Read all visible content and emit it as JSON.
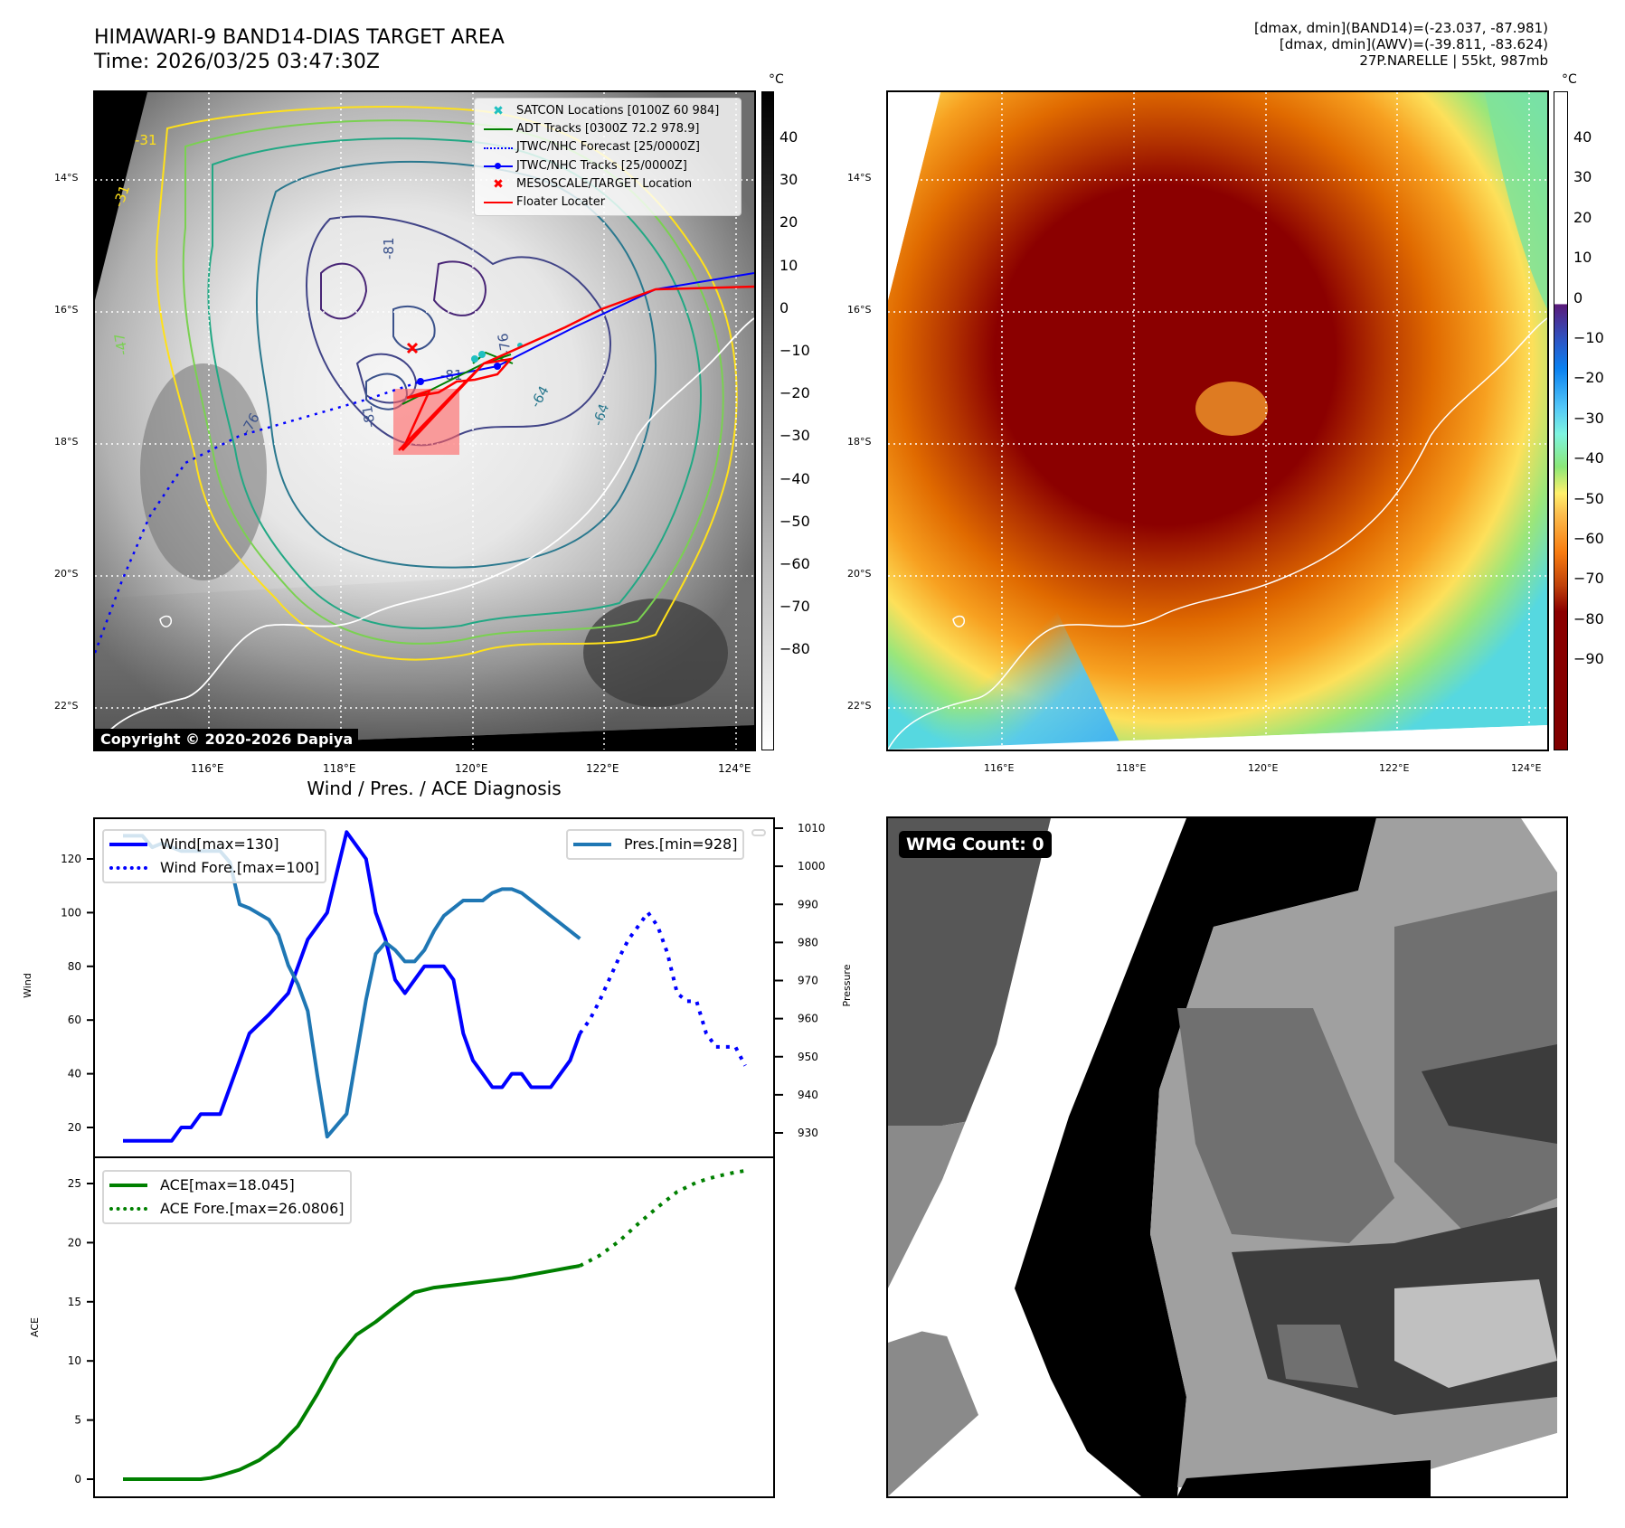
{
  "header": {
    "title_line1": "HIMAWARI-9 BAND14-DIAS TARGET AREA",
    "title_line2": "Time: 2026/03/25 03:47:30Z",
    "stats_line1": "[dmax, dmin](BAND14)=(-23.037, -87.981)",
    "stats_line2": "[dmax, dmin](AWV)=(-39.811, -83.624)",
    "stats_line3": "27P.NARELLE | 55kt, 987mb"
  },
  "left_map": {
    "lat_ticks": [
      "14°S",
      "16°S",
      "18°S",
      "20°S",
      "22°S"
    ],
    "lon_ticks": [
      "116°E",
      "118°E",
      "120°E",
      "122°E",
      "124°E"
    ],
    "copyright": "Copyright © 2020-2026 Dapiya",
    "contour_labels": [
      "-31",
      "-31",
      "-47",
      "-76",
      "-81",
      "-81",
      "-81",
      "-76",
      "-64",
      "-64"
    ],
    "legend": [
      {
        "label": "SATCON Locations [0100Z 60 984]",
        "icon": "x-marker-icon",
        "color": "#1fc0c0"
      },
      {
        "label": "ADT Tracks [0300Z 72.2 978.9]",
        "icon": "line-icon",
        "color": "#008000"
      },
      {
        "label": "JTWC/NHC Forecast [25/0000Z]",
        "icon": "dotted-line-icon",
        "color": "#0000ff"
      },
      {
        "label": "JTWC/NHC Tracks [25/0000Z]",
        "icon": "line-dot-icon",
        "color": "#0000ff"
      },
      {
        "label": "MESOSCALE/TARGET Location",
        "icon": "x-marker-icon",
        "color": "#ff0000"
      },
      {
        "label": "Floater Locater",
        "icon": "line-icon",
        "color": "#ff0000"
      }
    ],
    "colorbar": {
      "unit": "°C",
      "ticks": [
        "40",
        "30",
        "20",
        "10",
        "0",
        "−10",
        "−20",
        "−30",
        "−40",
        "−50",
        "−60",
        "−70",
        "−80"
      ]
    }
  },
  "right_map": {
    "lat_ticks": [
      "14°S",
      "16°S",
      "18°S",
      "20°S",
      "22°S"
    ],
    "lon_ticks": [
      "116°E",
      "118°E",
      "120°E",
      "122°E",
      "124°E"
    ],
    "colorbar": {
      "unit": "°C",
      "ticks": [
        "40",
        "30",
        "20",
        "10",
        "0",
        "−10",
        "−20",
        "−30",
        "−40",
        "−50",
        "−60",
        "−70",
        "−80",
        "−90"
      ]
    }
  },
  "wmg": {
    "badge": "WMG Count: 0"
  },
  "chart_data": [
    {
      "type": "line",
      "title": "Wind / Pres. / ACE Diagnosis",
      "ylabel": "Wind",
      "ylabel_right": "Pressure",
      "ylim": [
        11,
        136
      ],
      "ylim_right": [
        923,
        1012
      ],
      "yticks": [
        20,
        40,
        60,
        80,
        100,
        120
      ],
      "yticks_right": [
        930,
        940,
        950,
        960,
        970,
        980,
        990,
        1000,
        1010
      ],
      "x": [
        0,
        1,
        2,
        3,
        4,
        5,
        6,
        7,
        8,
        9,
        10,
        11,
        12,
        13,
        14,
        15,
        16,
        17,
        18,
        19,
        20,
        21,
        22,
        23,
        24,
        25,
        26,
        27,
        28,
        29,
        30,
        31,
        32,
        33,
        34,
        35,
        36,
        37,
        38,
        39,
        40,
        41,
        42,
        43,
        44,
        45,
        46,
        47,
        48,
        49,
        50,
        51,
        52,
        53,
        54,
        55,
        56,
        57,
        58,
        59,
        60,
        61,
        62,
        63,
        64
      ],
      "series": [
        {
          "name": "Wind[max=130]",
          "color": "#0000ff",
          "style": "solid",
          "x": [
            0,
            2,
            4,
            5,
            6,
            7,
            8,
            9,
            10,
            13,
            15,
            17,
            19,
            21,
            22,
            23,
            24,
            25,
            26,
            27,
            28,
            29,
            30,
            31,
            32,
            33,
            34,
            35,
            36,
            37,
            38,
            39,
            40,
            41,
            42,
            43,
            44,
            45,
            46,
            47
          ],
          "values": [
            15,
            15,
            15,
            15,
            20,
            20,
            25,
            25,
            25,
            55,
            62,
            70,
            90,
            100,
            115,
            130,
            125,
            120,
            100,
            90,
            75,
            70,
            75,
            80,
            80,
            80,
            75,
            55,
            45,
            40,
            35,
            35,
            40,
            40,
            35,
            35,
            35,
            40,
            45,
            55
          ]
        },
        {
          "name": "Wind Fore.[max=100]",
          "color": "#0000ff",
          "style": "dotted",
          "x": [
            47,
            48,
            49,
            50,
            51,
            52,
            53,
            54,
            55,
            56,
            57,
            58,
            59,
            60,
            61,
            62,
            63,
            64
          ],
          "values": [
            55,
            60,
            67,
            75,
            83,
            90,
            95,
            100,
            95,
            85,
            70,
            67,
            67,
            55,
            50,
            50,
            50,
            43
          ]
        },
        {
          "name": "Pres.[min=928]",
          "color": "#1f77b4",
          "style": "solid",
          "axis": "right",
          "x": [
            0,
            2,
            3,
            4,
            5,
            6,
            7,
            8,
            9,
            10,
            11,
            12,
            13,
            15,
            16,
            17,
            18,
            19,
            20,
            21,
            22,
            23,
            24,
            25,
            26,
            27,
            28,
            29,
            30,
            31,
            32,
            33,
            34,
            35,
            36,
            37,
            38,
            39,
            40,
            41,
            42,
            43,
            44,
            45,
            46,
            47
          ],
          "values": [
            1008,
            1008,
            1005,
            1006,
            1005,
            1004,
            1004,
            1004,
            1004,
            1004,
            1001,
            990,
            989,
            986,
            982,
            974,
            969,
            962,
            945,
            929,
            932,
            935,
            950,
            965,
            977,
            980,
            978,
            975,
            975,
            978,
            983,
            987,
            989,
            991,
            991,
            991,
            993,
            994,
            994,
            993,
            991,
            989,
            987,
            985,
            983,
            981
          ]
        }
      ]
    },
    {
      "type": "line",
      "ylabel": "ACE",
      "ylim": [
        -1.2,
        27.5
      ],
      "yticks": [
        0,
        5,
        10,
        15,
        20,
        25
      ],
      "series": [
        {
          "name": "ACE[max=18.045]",
          "color": "#008000",
          "style": "solid",
          "x": [
            0,
            3,
            6,
            8,
            9,
            10,
            12,
            14,
            16,
            18,
            20,
            22,
            24,
            26,
            28,
            30,
            32,
            34,
            36,
            38,
            40,
            42,
            44,
            46,
            47
          ],
          "values": [
            0,
            0,
            0,
            0,
            0.1,
            0.3,
            0.8,
            1.6,
            2.8,
            4.5,
            7.2,
            10.2,
            12.2,
            13.3,
            14.6,
            15.8,
            16.2,
            16.4,
            16.6,
            16.8,
            17.0,
            17.3,
            17.6,
            17.9,
            18.045
          ]
        },
        {
          "name": "ACE Fore.[max=26.0806]",
          "color": "#008000",
          "style": "dotted",
          "x": [
            47,
            49,
            51,
            53,
            55,
            57,
            59,
            61,
            63,
            64
          ],
          "values": [
            18.045,
            18.9,
            20.1,
            21.6,
            23.0,
            24.3,
            25.1,
            25.6,
            25.95,
            26.0806
          ]
        }
      ]
    }
  ]
}
